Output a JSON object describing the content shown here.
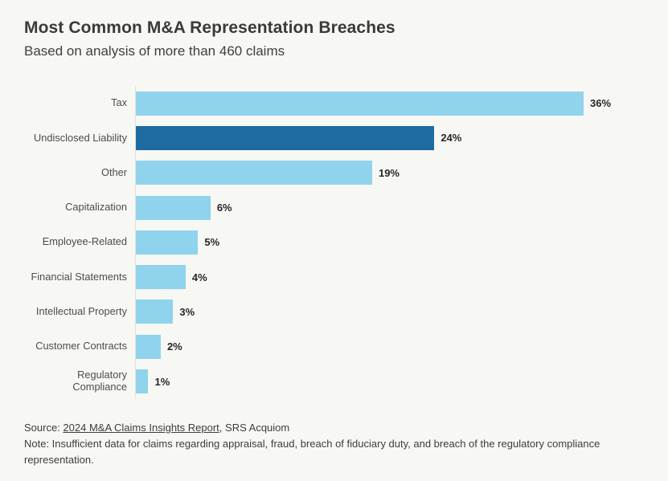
{
  "header": {
    "title": "Most Common M&A Representation Breaches",
    "subtitle": "Based on analysis of more than 460 claims"
  },
  "chart_data": {
    "type": "bar",
    "orientation": "horizontal",
    "title": "Most Common M&A Representation Breaches",
    "subtitle": "Based on analysis of more than 460 claims",
    "categories": [
      "Tax",
      "Undisclosed Liability",
      "Other",
      "Capitalization",
      "Employee-Related",
      "Financial Statements",
      "Intellectual Property",
      "Customer Contracts",
      "Regulatory Compliance"
    ],
    "values": [
      36,
      24,
      19,
      6,
      5,
      4,
      3,
      2,
      1
    ],
    "value_labels": [
      "36%",
      "24%",
      "19%",
      "6%",
      "5%",
      "4%",
      "3%",
      "2%",
      "1%"
    ],
    "unit": "%",
    "xlim": [
      0,
      36
    ],
    "grid": false,
    "legend": false,
    "highlight_index": 1,
    "bar_color": "#8fd3ec",
    "highlight_color": "#1d6ba0"
  },
  "footer": {
    "source_prefix": "Source: ",
    "source_link": "2024 M&A Claims Insights Report",
    "source_suffix": ", SRS Acquiom",
    "note": "Note: Insufficient data for claims regarding appraisal, fraud, breach of fiduciary duty, and breach of the regulatory compliance representation."
  },
  "colors": {
    "background": "#f7f7f4",
    "title_text": "#3a3a3a",
    "label_text": "#4c4c4c",
    "value_text": "#262626",
    "axis_line": "#e2e2df"
  }
}
